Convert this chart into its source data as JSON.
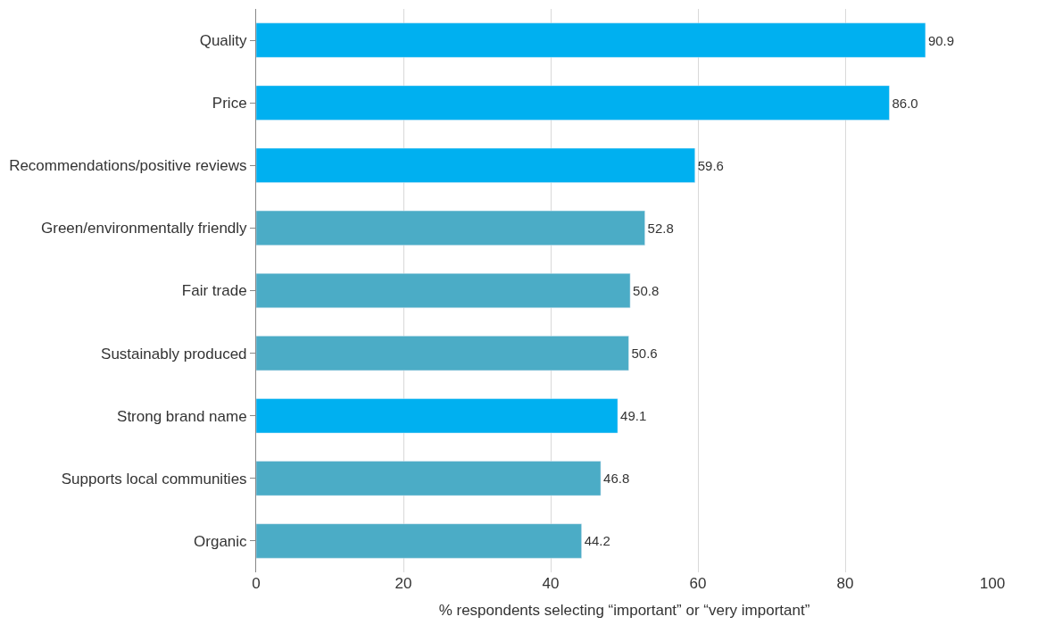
{
  "chart_data": {
    "type": "bar",
    "orientation": "horizontal",
    "xlabel": "% respondents selecting “important” or “very important”",
    "categories": [
      "Quality",
      "Price",
      "Recommendations/positive reviews",
      "Green/environmentally friendly",
      "Fair trade",
      "Sustainably produced",
      "Strong brand name",
      "Supports local communities",
      "Organic"
    ],
    "values": [
      90.9,
      86.0,
      59.6,
      52.8,
      50.8,
      50.6,
      49.1,
      46.8,
      44.2
    ],
    "value_labels": [
      "90.9",
      "86.0",
      "59.6",
      "52.8",
      "50.8",
      "50.6",
      "49.1",
      "46.8",
      "44.2"
    ],
    "colors": [
      "#00b0f0",
      "#00b0f0",
      "#00b0f0",
      "#4bacc6",
      "#4bacc6",
      "#4bacc6",
      "#00b0f0",
      "#4bacc6",
      "#4bacc6"
    ],
    "xlim": [
      0,
      100
    ],
    "xticks": [
      0,
      20,
      40,
      60,
      80,
      100
    ],
    "grid": "x"
  }
}
